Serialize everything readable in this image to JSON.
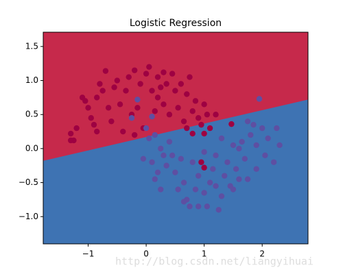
{
  "chart_data": {
    "type": "scatter",
    "title": "Logistic Regression",
    "watermark": "http://blog.csdn.net/liangyihuai",
    "xlim": [
      -1.775,
      2.79
    ],
    "ylim": [
      -1.4,
      1.71
    ],
    "xticks": [
      {
        "value": -1,
        "label": "−1"
      },
      0,
      1,
      2
    ],
    "yticks": [
      {
        "value": -1.0,
        "label": "−1.0"
      },
      {
        "value": -0.5,
        "label": "−0.5"
      },
      {
        "value": 0.0,
        "label": "0.0"
      },
      0.5,
      {
        "value": 1.0,
        "label": "1.0"
      },
      1.5
    ],
    "regions": {
      "above_color": "#c6294b",
      "below_color": "#3e73b3"
    },
    "decision_boundary": {
      "x": [
        -1.775,
        2.79
      ],
      "y": [
        -0.18,
        0.72
      ]
    },
    "series": [
      {
        "color": "#9e0142",
        "x": [
          -1.3,
          -1.2,
          -1.25,
          -1.1,
          -1.05,
          -1.0,
          -0.95,
          -0.9,
          -0.85,
          -0.8,
          -0.75,
          -0.7,
          -0.65,
          -0.6,
          -0.55,
          -0.5,
          -0.45,
          -0.4,
          -0.35,
          -0.3,
          -0.25,
          -0.2,
          -0.15,
          -0.1,
          -0.05,
          0.0,
          0.05,
          0.1,
          0.15,
          0.2,
          0.25,
          0.3,
          0.35,
          0.4,
          0.45,
          0.5,
          0.55,
          0.6,
          0.65,
          0.7,
          0.75,
          0.8,
          0.85,
          0.9,
          0.95,
          1.0,
          1.05,
          1.1,
          1.0,
          0.95,
          1.0,
          1.47,
          0.8,
          -1.3,
          -0.85,
          0.3,
          0.2,
          -0.2,
          0.7,
          1.2
        ],
        "y": [
          0.22,
          0.3,
          0.12,
          0.75,
          0.7,
          0.6,
          0.45,
          0.35,
          0.25,
          0.95,
          0.85,
          1.14,
          0.6,
          0.4,
          0.9,
          1.0,
          0.65,
          0.25,
          0.85,
          1.05,
          0.5,
          1.15,
          0.6,
          0.95,
          0.3,
          1.1,
          1.2,
          0.85,
          0.55,
          1.05,
          0.9,
          0.65,
          0.95,
          0.5,
          1.1,
          0.85,
          0.6,
          0.95,
          0.4,
          0.8,
          1.05,
          0.55,
          0.7,
          0.45,
          0.35,
          0.65,
          0.5,
          0.3,
          0.22,
          -0.2,
          -0.28,
          0.36,
          0.22,
          0.12,
          0.75,
          1.12,
          0.75,
          0.2,
          0.3,
          0.5
        ]
      },
      {
        "color": "#5e4fa2",
        "x": [
          -0.15,
          0.1,
          -0.25,
          0.0,
          0.05,
          0.15,
          0.25,
          0.3,
          0.35,
          0.2,
          0.1,
          -0.05,
          0.45,
          0.5,
          0.55,
          0.65,
          0.7,
          0.75,
          0.85,
          0.9,
          1.0,
          1.05,
          1.1,
          1.15,
          1.2,
          1.3,
          1.35,
          1.4,
          1.5,
          1.55,
          1.6,
          1.65,
          1.7,
          1.75,
          1.8,
          1.85,
          1.9,
          1.95,
          2.0,
          2.05,
          2.1,
          2.2,
          2.3,
          1.5,
          1.3,
          1.2,
          0.9,
          0.65,
          0.4,
          0.15,
          1.45,
          1.0,
          0.8,
          1.6,
          2.25,
          1.75,
          0.6,
          0.25,
          1.25,
          1.9
        ],
        "y": [
          0.72,
          0.47,
          0.45,
          0.3,
          0.15,
          0.2,
          0.0,
          -0.1,
          -0.25,
          -0.35,
          -0.2,
          -0.15,
          -0.1,
          -0.35,
          -0.6,
          -0.5,
          -0.75,
          -0.85,
          -0.6,
          -0.4,
          -0.65,
          -0.85,
          -0.5,
          -0.3,
          -0.55,
          -0.7,
          -0.4,
          -0.2,
          -0.6,
          -0.3,
          0.0,
          0.1,
          -0.15,
          -0.45,
          0.2,
          0.35,
          0.05,
          0.73,
          0.3,
          -0.1,
          0.15,
          -0.2,
          0.05,
          0.05,
          0.15,
          -0.1,
          -0.85,
          -0.78,
          0.1,
          -0.45,
          -0.55,
          -0.05,
          -0.2,
          -0.45,
          0.3,
          0.4,
          -0.15,
          -0.6,
          -0.9,
          -0.3
        ]
      }
    ]
  }
}
